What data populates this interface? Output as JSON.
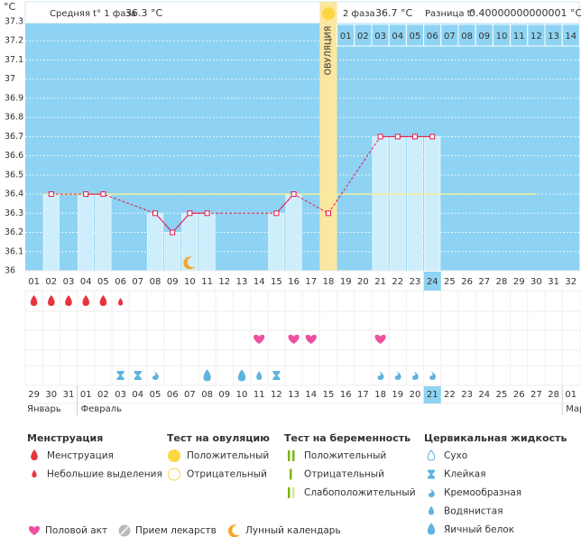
{
  "header": {
    "phase1_label": "Средняя t° 1 фаза",
    "phase1_value": "36.3 °C",
    "phase2_label": "2 фаза",
    "phase2_value": "36.7 °C",
    "diff_label": "Разница t°",
    "diff_value": "0.40000000000001 °C"
  },
  "chart_data": {
    "type": "line",
    "y_label": "°C",
    "categories": [
      "01",
      "02",
      "03",
      "04",
      "05",
      "06",
      "07",
      "08",
      "09",
      "10",
      "11",
      "12",
      "13",
      "14",
      "15",
      "16",
      "17",
      "18",
      "19",
      "20",
      "21",
      "22",
      "23",
      "24",
      "25",
      "26",
      "27",
      "28",
      "29",
      "30",
      "31",
      "32"
    ],
    "series": [
      {
        "name": "Температура",
        "color": "#e8174b",
        "values": [
          null,
          36.4,
          null,
          36.4,
          36.4,
          null,
          null,
          36.3,
          36.2,
          36.3,
          36.3,
          null,
          null,
          null,
          36.3,
          36.4,
          null,
          36.3,
          null,
          null,
          36.7,
          36.7,
          36.7,
          36.7,
          null,
          null,
          null,
          null,
          null,
          null,
          null,
          null
        ]
      }
    ],
    "ylim": [
      36,
      37.3
    ],
    "yticks": [
      36,
      36.1,
      36.2,
      36.3,
      36.4,
      36.5,
      36.6,
      36.7,
      36.8,
      36.9,
      37,
      37.1,
      37.2,
      37.3
    ],
    "grid": true,
    "coverline": 36.4,
    "ovulation_day": "18",
    "ovulation_label": "ОВУЛЯЦИЯ",
    "phase2_days": [
      "01",
      "02",
      "03",
      "04",
      "05",
      "06",
      "07",
      "08",
      "09",
      "10",
      "11",
      "12",
      "13",
      "14"
    ],
    "selected_day": "24",
    "background": "#8ed3f3",
    "bar_color": "#cfeefb"
  },
  "symbols": {
    "menstruation_days": [
      "01",
      "02",
      "03",
      "04",
      "05"
    ],
    "spotting_days": [
      "06"
    ],
    "intercourse_days": [
      "14",
      "16",
      "17",
      "21"
    ],
    "moon_days": [
      "10"
    ],
    "sticky_days": [
      "06",
      "07",
      "15"
    ],
    "creamy_days": [
      "08",
      "21",
      "22",
      "23",
      "24"
    ],
    "watery_days": [
      "14"
    ],
    "egg_white_days": [
      "11",
      "13"
    ]
  },
  "calendar": {
    "dates": [
      "29",
      "30",
      "31",
      "01",
      "02",
      "03",
      "04",
      "05",
      "06",
      "07",
      "08",
      "09",
      "10",
      "11",
      "12",
      "13",
      "14",
      "15",
      "16",
      "17",
      "18",
      "19",
      "20",
      "21",
      "22",
      "23",
      "24",
      "25",
      "26",
      "27",
      "28",
      "01"
    ],
    "weekend_dates": [
      "03",
      "04",
      "10",
      "11",
      "17",
      "18",
      "24",
      "25"
    ],
    "months": [
      "Январь",
      "Февраль",
      "Март"
    ]
  },
  "legend": {
    "sections": [
      {
        "title": "Менструация",
        "items": [
          "Менструация",
          "Небольшие выделения"
        ]
      },
      {
        "title": "Тест на овуляцию",
        "items": [
          "Положительный",
          "Отрицательный"
        ]
      },
      {
        "title": "Тест на беременность",
        "items": [
          "Положительный",
          "Отрицательный",
          "Слабоположительный"
        ]
      },
      {
        "title": "Цервикальная жидкость",
        "items": [
          "Сухо",
          "Клейкая",
          "Кремообразная",
          "Водянистая",
          "Яичный белок"
        ]
      }
    ],
    "extras": [
      "Половой акт",
      "Прием лекарств",
      "Лунный календарь"
    ]
  }
}
